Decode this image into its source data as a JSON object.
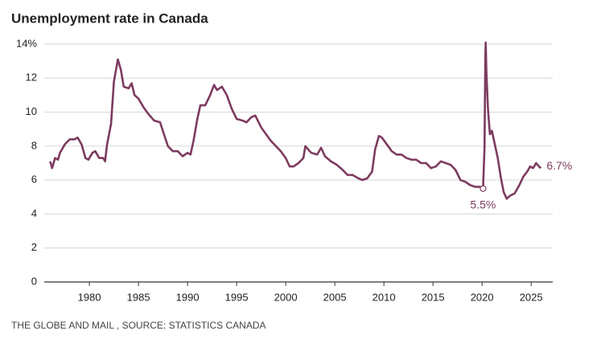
{
  "chart_data": {
    "type": "line",
    "title": "Unemployment rate in Canada",
    "source": "THE GLOBE AND MAIL , SOURCE: STATISTICS CANADA",
    "xlim": [
      1975.4,
      2027.2
    ],
    "xticks": [
      1980,
      1985,
      1990,
      1995,
      2000,
      2005,
      2010,
      2015,
      2020,
      2025
    ],
    "ylim": [
      0,
      14
    ],
    "yticks": [
      0,
      2,
      4,
      6,
      8,
      10,
      12,
      {
        "value": 14,
        "label": "14%"
      }
    ],
    "grid": true,
    "series": [
      {
        "name": "Unemployment rate",
        "color": "#7d3b5f",
        "x": [
          1976.0,
          1976.2,
          1976.5,
          1976.8,
          1977.0,
          1977.5,
          1978.0,
          1978.5,
          1978.8,
          1979.2,
          1979.6,
          1979.9,
          1980.3,
          1980.6,
          1981.0,
          1981.4,
          1981.6,
          1981.8,
          1982.2,
          1982.5,
          1982.9,
          1983.2,
          1983.5,
          1984.0,
          1984.3,
          1984.6,
          1985.0,
          1985.5,
          1986.0,
          1986.6,
          1987.2,
          1987.6,
          1988.0,
          1988.5,
          1989.0,
          1989.5,
          1990.0,
          1990.3,
          1990.6,
          1991.0,
          1991.3,
          1991.8,
          1992.3,
          1992.7,
          1993.0,
          1993.5,
          1994.0,
          1994.5,
          1995.0,
          1995.6,
          1996.0,
          1996.5,
          1996.9,
          1997.5,
          1998.0,
          1998.5,
          1999.0,
          1999.5,
          2000.0,
          2000.4,
          2000.8,
          2001.3,
          2001.8,
          2002.0,
          2002.6,
          2003.2,
          2003.6,
          2004.0,
          2004.6,
          2005.2,
          2005.8,
          2006.3,
          2006.8,
          2007.4,
          2007.8,
          2008.3,
          2008.8,
          2009.1,
          2009.5,
          2009.8,
          2010.3,
          2010.8,
          2011.3,
          2011.8,
          2012.3,
          2012.8,
          2013.3,
          2013.8,
          2014.3,
          2014.8,
          2015.3,
          2015.8,
          2016.3,
          2016.8,
          2017.3,
          2017.8,
          2018.3,
          2018.8,
          2019.3,
          2019.8,
          2020.1,
          2020.25,
          2020.33,
          2020.37,
          2020.45,
          2020.6,
          2020.8,
          2021.0,
          2021.3,
          2021.6,
          2021.9,
          2022.2,
          2022.5,
          2022.9,
          2023.3,
          2023.8,
          2024.2,
          2024.6,
          2024.9,
          2025.2,
          2025.5,
          2025.8,
          2026.0
        ],
        "values": [
          7.1,
          6.7,
          7.3,
          7.2,
          7.6,
          8.1,
          8.4,
          8.4,
          8.5,
          8.1,
          7.3,
          7.2,
          7.6,
          7.7,
          7.3,
          7.3,
          7.1,
          8.1,
          9.3,
          11.8,
          13.1,
          12.5,
          11.5,
          11.4,
          11.7,
          11.0,
          10.8,
          10.3,
          9.9,
          9.5,
          9.4,
          8.7,
          8.0,
          7.7,
          7.7,
          7.4,
          7.6,
          7.5,
          8.3,
          9.6,
          10.4,
          10.4,
          11.0,
          11.6,
          11.3,
          11.5,
          11.0,
          10.2,
          9.6,
          9.5,
          9.4,
          9.7,
          9.8,
          9.1,
          8.7,
          8.3,
          8.0,
          7.7,
          7.3,
          6.8,
          6.8,
          7.0,
          7.3,
          8.0,
          7.6,
          7.5,
          7.9,
          7.4,
          7.1,
          6.9,
          6.6,
          6.3,
          6.3,
          6.1,
          6.0,
          6.1,
          6.5,
          7.8,
          8.6,
          8.5,
          8.1,
          7.7,
          7.5,
          7.5,
          7.3,
          7.2,
          7.2,
          7.0,
          7.0,
          6.7,
          6.8,
          7.1,
          7.0,
          6.9,
          6.6,
          6.0,
          5.9,
          5.7,
          5.6,
          5.6,
          5.5,
          7.9,
          13.1,
          14.1,
          12.3,
          10.2,
          8.7,
          8.9,
          8.1,
          7.3,
          6.2,
          5.3,
          4.9,
          5.1,
          5.2,
          5.7,
          6.2,
          6.5,
          6.8,
          6.7,
          7.0,
          6.8,
          6.7
        ]
      }
    ],
    "annotations": [
      {
        "x": 2020.1,
        "value": 5.5,
        "label": "5.5%"
      },
      {
        "x": 2026.0,
        "value": 6.7,
        "label": "6.7%"
      }
    ]
  }
}
